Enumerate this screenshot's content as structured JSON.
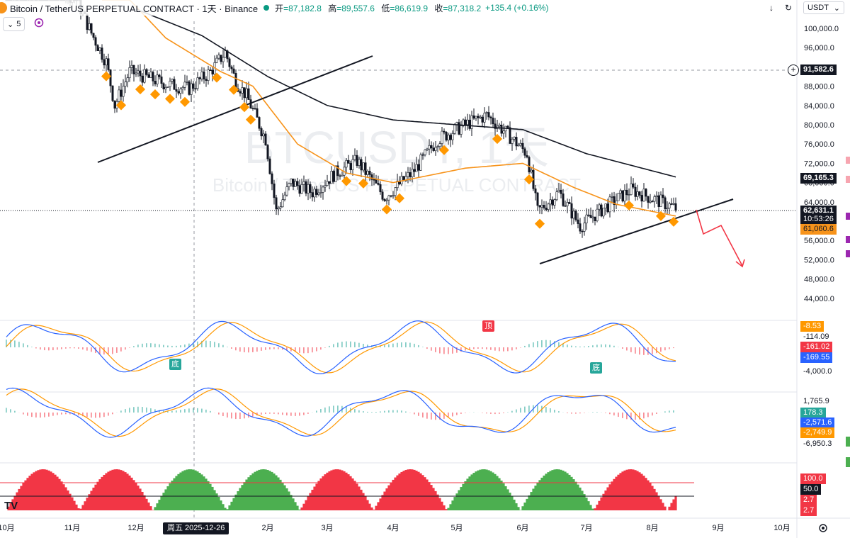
{
  "header": {
    "symbol": "Bitcoin / TetherUS PERPETUAL CONTRACT · 1天 · Binance",
    "ohlc": {
      "open_label": "开",
      "open": "=87,182.8",
      "high_label": "高",
      "high": "=89,557.6",
      "low_label": "低",
      "low": "=86,619.9",
      "close_label": "收",
      "close": "=87,318.2"
    },
    "change": "+135.4 (+0.16%)",
    "indicator_count": "5",
    "currency": "USDT"
  },
  "colors": {
    "up": "#089981",
    "down": "#f23645",
    "ma_fast": "#f7931a",
    "ma_slow": "#131722",
    "signal": "#ff9800",
    "macd": "#2962ff",
    "rsi_up": "#4caf50",
    "rsi_down": "#f23645"
  },
  "price_axis": {
    "ticks": [
      "100,000.0",
      "96,000.0",
      "92,000.0",
      "88,000.0",
      "84,000.0",
      "80,000.0",
      "76,000.0",
      "72,000.0",
      "68,000.0",
      "64,000.0",
      "60,000.0",
      "56,000.0",
      "52,000.0",
      "48,000.0",
      "44,000.0"
    ]
  },
  "price_labels": {
    "crosshair": "91,582.6",
    "ma_slow": "69,165.3",
    "last": "62,631.1",
    "countdown": "10:53:26",
    "ma_fast": "61,060.6"
  },
  "macd1": {
    "labels": [
      "-8.53",
      "-114.09",
      "-161.02",
      "-169.55",
      "-4,000.0"
    ],
    "badges": {
      "top": "顶",
      "bottom": "底"
    }
  },
  "macd2": {
    "labels": [
      "1,765.9",
      "178.3",
      "-2,571.6",
      "-2,749.9",
      "-6,950.3"
    ]
  },
  "rsi": {
    "labels": [
      "100.0",
      "50.0",
      "2.7",
      "2.7"
    ]
  },
  "time_axis": {
    "months": [
      "10月",
      "11月",
      "12月",
      "2月",
      "3月",
      "4月",
      "5月",
      "6月",
      "7月",
      "8月",
      "9月",
      "10月"
    ],
    "crosshair_date": "周五 2025-12-26"
  },
  "watermark": {
    "big": "BTCUSDT, 1天",
    "small": "Bitcoin / TetherUS PERPETUAL CONTRACT"
  },
  "chart_data": {
    "type": "candlestick",
    "title": "Bitcoin / TetherUS PERPETUAL CONTRACT · 1天 · Binance",
    "x_range": [
      "10月",
      "10月"
    ],
    "ylim": [
      40000,
      104000
    ],
    "price_path": [
      {
        "t": "2025-10-01",
        "p": 114000
      },
      {
        "t": "2025-10-27",
        "p": 108000
      },
      {
        "t": "2025-11-03",
        "p": 106000
      },
      {
        "t": "2025-11-10",
        "p": 99000
      },
      {
        "t": "2025-11-17",
        "p": 93000
      },
      {
        "t": "2025-11-21",
        "p": 84000
      },
      {
        "t": "2025-11-28",
        "p": 91000
      },
      {
        "t": "2025-12-05",
        "p": 90000
      },
      {
        "t": "2025-12-15",
        "p": 88500
      },
      {
        "t": "2025-12-26",
        "p": 87500
      },
      {
        "t": "2026-01-05",
        "p": 91000
      },
      {
        "t": "2026-01-12",
        "p": 95000
      },
      {
        "t": "2026-01-17",
        "p": 89000
      },
      {
        "t": "2026-01-22",
        "p": 86000
      },
      {
        "t": "2026-01-31",
        "p": 77000
      },
      {
        "t": "2026-02-05",
        "p": 62000
      },
      {
        "t": "2026-02-12",
        "p": 68000
      },
      {
        "t": "2026-02-22",
        "p": 66000
      },
      {
        "t": "2026-03-05",
        "p": 70000
      },
      {
        "t": "2026-03-15",
        "p": 72500
      },
      {
        "t": "2026-03-28",
        "p": 65000
      },
      {
        "t": "2026-04-10",
        "p": 70000
      },
      {
        "t": "2026-04-22",
        "p": 77000
      },
      {
        "t": "2026-05-05",
        "p": 80000
      },
      {
        "t": "2026-05-15",
        "p": 82000
      },
      {
        "t": "2026-05-25",
        "p": 78000
      },
      {
        "t": "2026-06-03",
        "p": 74000
      },
      {
        "t": "2026-06-08",
        "p": 62000
      },
      {
        "t": "2026-06-18",
        "p": 66000
      },
      {
        "t": "2026-06-28",
        "p": 59000
      },
      {
        "t": "2026-07-10",
        "p": 63000
      },
      {
        "t": "2026-07-22",
        "p": 66500
      },
      {
        "t": "2026-08-05",
        "p": 64000
      },
      {
        "t": "2026-08-12",
        "p": 62631
      }
    ],
    "ma_fast_path": [
      {
        "t": "2025-11-15",
        "p": 112000
      },
      {
        "t": "2025-12-15",
        "p": 98000
      },
      {
        "t": "2026-01-10",
        "p": 91000
      },
      {
        "t": "2026-01-25",
        "p": 88000
      },
      {
        "t": "2026-02-15",
        "p": 76000
      },
      {
        "t": "2026-03-10",
        "p": 70000
      },
      {
        "t": "2026-04-01",
        "p": 68000
      },
      {
        "t": "2026-05-05",
        "p": 71000
      },
      {
        "t": "2026-06-01",
        "p": 72000
      },
      {
        "t": "2026-06-25",
        "p": 67000
      },
      {
        "t": "2026-07-15",
        "p": 63500
      },
      {
        "t": "2026-08-12",
        "p": 61061
      }
    ],
    "ma_slow_path": [
      {
        "t": "2025-12-01",
        "p": 104000
      },
      {
        "t": "2026-01-01",
        "p": 98500
      },
      {
        "t": "2026-02-01",
        "p": 90000
      },
      {
        "t": "2026-03-01",
        "p": 84000
      },
      {
        "t": "2026-04-01",
        "p": 81000
      },
      {
        "t": "2026-05-01",
        "p": 80000
      },
      {
        "t": "2026-06-01",
        "p": 79000
      },
      {
        "t": "2026-07-01",
        "p": 74000
      },
      {
        "t": "2026-08-12",
        "p": 69165
      }
    ]
  }
}
